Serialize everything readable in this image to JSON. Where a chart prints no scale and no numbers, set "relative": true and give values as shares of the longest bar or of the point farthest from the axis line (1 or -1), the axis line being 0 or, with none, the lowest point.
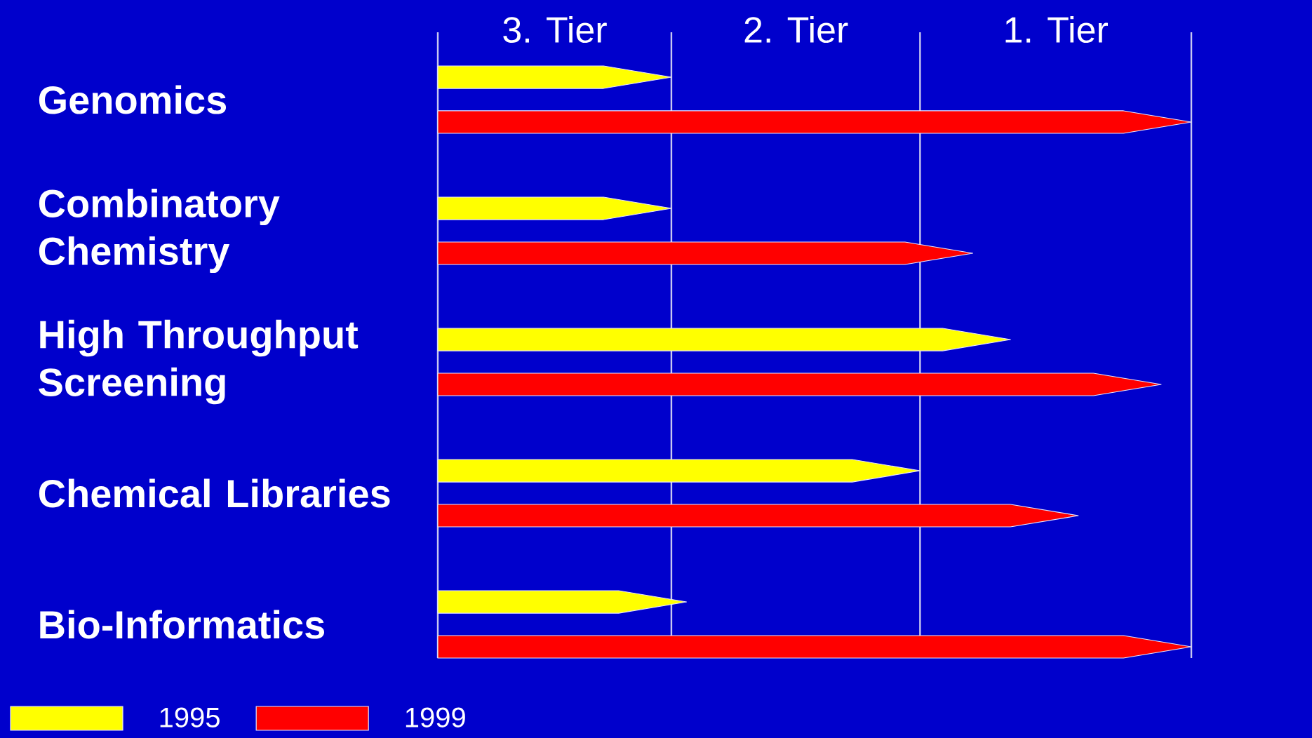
{
  "chart_data": {
    "type": "bar",
    "orientation": "horizontal",
    "relative": true,
    "categories": [
      "Genomics",
      "Combinatory Chemistry",
      "High Throughput Screening",
      "Chemical Libraries",
      "Bio-Informatics"
    ],
    "series": [
      {
        "name": "1995",
        "color": "#ffff00",
        "values": [
          0.31,
          0.31,
          0.76,
          0.64,
          0.33
        ]
      },
      {
        "name": "1999",
        "color": "#ff0000",
        "values": [
          1,
          0.71,
          0.96,
          0.85,
          1
        ]
      }
    ],
    "ref_lines": [
      {
        "axis": "x",
        "value": 0.31,
        "color": "#c8c8f0"
      },
      {
        "axis": "x",
        "value": 0.64,
        "color": "#c8c8f0"
      },
      {
        "axis": "x",
        "value": 1,
        "color": "#c8c8f0"
      }
    ],
    "annotations": [
      "3. Tier",
      "2. Tier",
      "1. Tier"
    ],
    "legend": "bottom left"
  }
}
